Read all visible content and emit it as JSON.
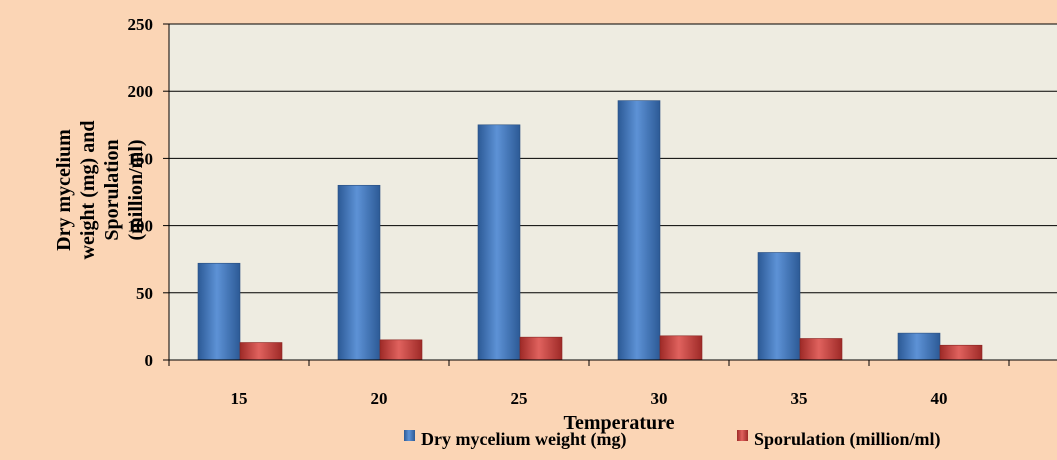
{
  "chart_data": {
    "type": "bar",
    "title": "",
    "xlabel": "Temperature",
    "ylabel_lines": [
      "Dry mycelium",
      "weight (mg) and",
      "Sporulation",
      "(million/ml)"
    ],
    "categories": [
      "15",
      "20",
      "25",
      "30",
      "35",
      "40"
    ],
    "ylim": [
      0,
      250
    ],
    "yticks": [
      "0",
      "50",
      "100",
      "150",
      "200",
      "250"
    ],
    "grid": true,
    "legend_position": "bottom",
    "series": [
      {
        "name": "Dry mycelium weight (mg)",
        "values": [
          72,
          130,
          175,
          193,
          80,
          20
        ],
        "color": "#4a7ebb"
      },
      {
        "name": "Sporulation (million/ml)",
        "values": [
          13,
          15,
          17,
          18,
          16,
          11
        ],
        "color": "#c0504d"
      }
    ],
    "colors": {
      "outer_background": "#fbd5b5",
      "plot_background": "#eeece1",
      "gridline": "#000000"
    }
  }
}
